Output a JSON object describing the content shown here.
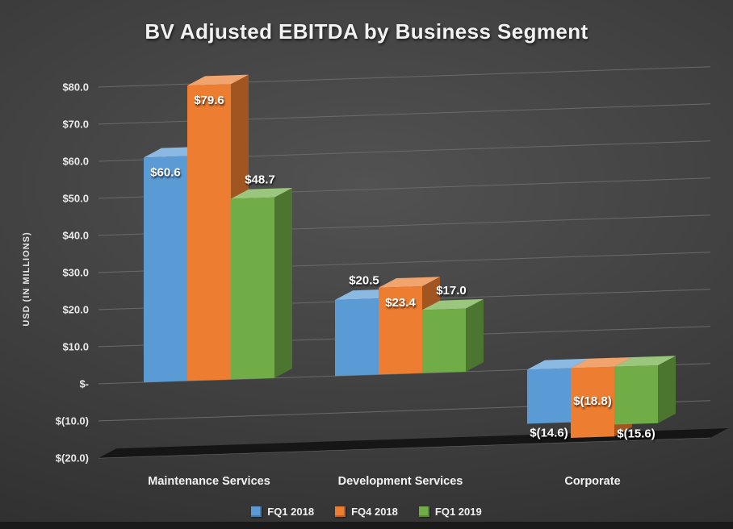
{
  "chart_data": {
    "type": "bar",
    "variant": "3d-clustered-column",
    "title": "BV Adjusted EBITDA by Business Segment",
    "ylabel": "USD  (IN MILLIONS)",
    "categories": [
      "Maintenance Services",
      "Development Services",
      "Corporate"
    ],
    "series": [
      {
        "name": "FQ1 2018",
        "color": "#5B9BD5",
        "values": [
          60.6,
          20.5,
          -14.6
        ],
        "data_labels": [
          "$60.6",
          "$20.5",
          "$(14.6)"
        ],
        "label_placement": [
          "inside-top",
          "above",
          "below"
        ]
      },
      {
        "name": "FQ4 2018",
        "color": "#ED7D31",
        "values": [
          79.6,
          23.4,
          -18.8
        ],
        "data_labels": [
          "$79.6",
          "$23.4",
          "$(18.8)"
        ],
        "label_placement": [
          "inside-top",
          "inside-top",
          "inside-bottom"
        ]
      },
      {
        "name": "FQ1 2019",
        "color": "#70AD47",
        "values": [
          48.7,
          17.0,
          -15.6
        ],
        "data_labels": [
          "$48.7",
          "$17.0",
          "$(15.6)"
        ],
        "label_placement": [
          "above",
          "above",
          "below"
        ]
      }
    ],
    "yticks": [
      {
        "value": 80,
        "label": "$80.0"
      },
      {
        "value": 70,
        "label": "$70.0"
      },
      {
        "value": 60,
        "label": "$60.0"
      },
      {
        "value": 50,
        "label": "$50.0"
      },
      {
        "value": 40,
        "label": "$40.0"
      },
      {
        "value": 30,
        "label": "$30.0"
      },
      {
        "value": 20,
        "label": "$20.0"
      },
      {
        "value": 10,
        "label": "$10.0"
      },
      {
        "value": 0,
        "label": "$-"
      },
      {
        "value": -10,
        "label": "$(10.0)"
      },
      {
        "value": -20,
        "label": "$(20.0)"
      }
    ],
    "ylim": [
      -20,
      80
    ],
    "grid": true,
    "legend": {
      "position": "bottom",
      "items": [
        "FQ1 2018",
        "FQ4 2018",
        "FQ1 2019"
      ]
    }
  },
  "colors": {
    "background_light": "#4f4f4f",
    "background_dark": "#262626",
    "gridline": "#6a6a6a",
    "text": "#f0f0f0",
    "series_blue": "#5B9BD5",
    "series_orange": "#ED7D31",
    "series_green": "#70AD47"
  }
}
